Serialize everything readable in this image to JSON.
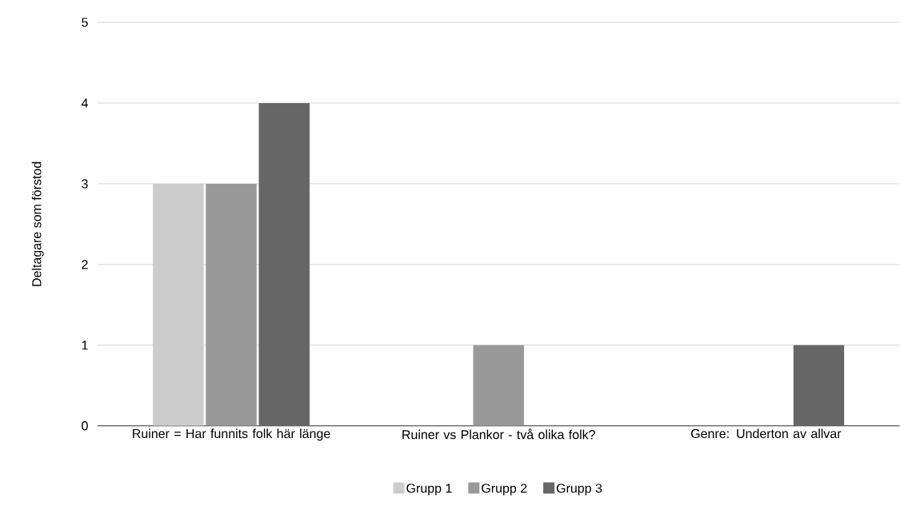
{
  "chart_data": {
    "type": "bar",
    "ylabel": "Deltagare som förstod",
    "categories": [
      "Ruiner = Har funnits folk här länge",
      "Ruiner vs Plankor - två olika folk?",
      "Genre: Underton av allvar"
    ],
    "series": [
      {
        "name": "Grupp 1",
        "color": "#cccccc",
        "values": [
          3,
          0,
          0
        ]
      },
      {
        "name": "Grupp 2",
        "color": "#999999",
        "values": [
          3,
          1,
          0
        ]
      },
      {
        "name": "Grupp 3",
        "color": "#666666",
        "values": [
          4,
          0,
          1
        ]
      }
    ],
    "ylim": [
      0,
      5
    ],
    "yticks": [
      0,
      1,
      2,
      3,
      4,
      5
    ],
    "grid": "y",
    "legend": "bottom"
  }
}
